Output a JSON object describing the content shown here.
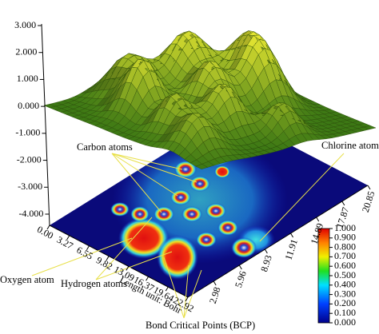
{
  "chart_data": {
    "type": "surface",
    "zlim": [
      -4,
      3
    ],
    "zticks": [
      {
        "value": 3,
        "label": "3.000"
      },
      {
        "value": 2,
        "label": "2.000"
      },
      {
        "value": 1,
        "label": "1.000"
      },
      {
        "value": 0,
        "label": "0.000"
      },
      {
        "value": -1,
        "label": "-1.000"
      },
      {
        "value": -2,
        "label": "-2.000"
      },
      {
        "value": -3,
        "label": "-3.000"
      },
      {
        "value": -4,
        "label": "-4.000"
      }
    ],
    "xlim": [
      0,
      22.92
    ],
    "xticks": [
      {
        "value": 0,
        "label": "0.00"
      },
      3.27,
      6.55,
      9.82,
      13.09,
      16.37,
      19.64,
      22.92
    ],
    "ylim": [
      0,
      20.85
    ],
    "yticks": [
      2.98,
      5.96,
      8.93,
      11.91,
      14.89,
      17.87,
      20.85
    ],
    "xlabel": "Length unit: Bohr",
    "colorbar": {
      "lim": [
        0,
        1
      ],
      "ticks": [
        {
          "value": 0,
          "label": "0.000"
        },
        {
          "value": 0.1,
          "label": "0.100"
        },
        {
          "value": 0.2,
          "label": "0.200"
        },
        {
          "value": 0.3,
          "label": "0.300"
        },
        {
          "value": 0.4,
          "label": "0.400"
        },
        {
          "value": 0.5,
          "label": "0.500"
        },
        {
          "value": 0.6,
          "label": "0.600"
        },
        {
          "value": 0.7,
          "label": "0.700"
        },
        {
          "value": 0.8,
          "label": "0.800"
        },
        {
          "value": 0.9,
          "label": "0.900"
        },
        {
          "value": 1,
          "label": "1.000"
        }
      ]
    },
    "annotations": [
      "Carbon atoms",
      "Chlorine atom",
      "Oxygen atom",
      "Hydrogen atoms",
      "Bond Critical Points (BCP)"
    ]
  }
}
